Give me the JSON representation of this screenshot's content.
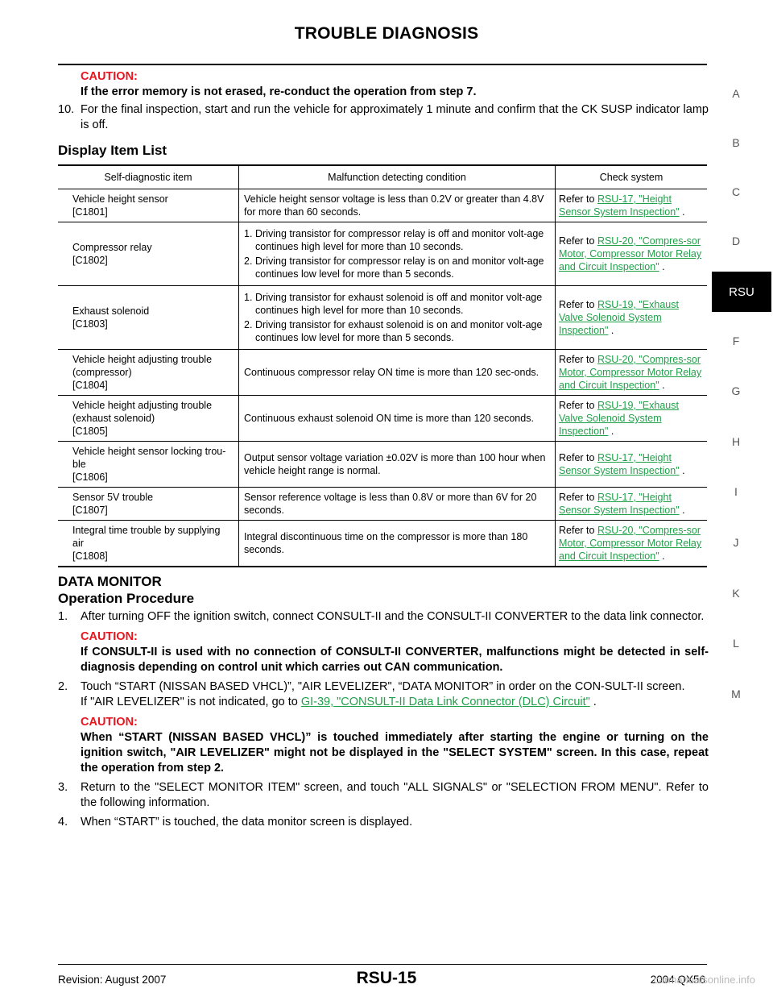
{
  "header": {
    "title": "TROUBLE DIAGNOSIS"
  },
  "side_index": {
    "letters": [
      "A",
      "B",
      "C",
      "D",
      "RSU",
      "F",
      "G",
      "H",
      "I",
      "J",
      "K",
      "L",
      "M"
    ],
    "active": "RSU"
  },
  "intro": {
    "caution_label": "CAUTION:",
    "caution_text": "If the error memory is not erased, re-conduct the operation from step 7.",
    "step10_num": "10.",
    "step10_text": "For the final inspection, start and run the vehicle for approximately 1 minute and confirm that the CK SUSP indicator lamp is off."
  },
  "display_item_list": {
    "heading": "Display Item List",
    "columns": [
      "Self-diagnostic item",
      "Malfunction detecting condition",
      "Check system"
    ],
    "rows": [
      {
        "item": [
          "Vehicle height sensor",
          "[C1801]"
        ],
        "condition": "Vehicle height sensor voltage is less than 0.2V or greater than 4.8V for more than 60 seconds.",
        "refer_prefix": "Refer to ",
        "refer_link": "RSU-17, \"Height Sensor System Inspection\"",
        "refer_suffix": " ."
      },
      {
        "item": [
          "Compressor relay",
          "[C1802]"
        ],
        "conditions": [
          {
            "num": "1.",
            "text": "Driving transistor for compressor relay is off and monitor volt-age continues high level for more than 10 seconds."
          },
          {
            "num": "2.",
            "text": "Driving transistor for compressor relay is on and monitor volt-age continues low level for more than 5 seconds."
          }
        ],
        "refer_prefix": "Refer to ",
        "refer_link": "RSU-20, \"Compres-sor Motor, Compressor Motor Relay and Circuit Inspection\"",
        "refer_suffix": " ."
      },
      {
        "item": [
          "Exhaust solenoid",
          "[C1803]"
        ],
        "conditions": [
          {
            "num": "1.",
            "text": "Driving transistor for exhaust solenoid is off and monitor volt-age continues high level for more than 10 seconds."
          },
          {
            "num": "2.",
            "text": "Driving transistor for exhaust solenoid is on and monitor volt-age continues low level for more than 5 seconds."
          }
        ],
        "refer_prefix": "Refer to ",
        "refer_link": "RSU-19, \"Exhaust Valve Solenoid System Inspection\"",
        "refer_suffix": " ."
      },
      {
        "item": [
          "Vehicle height adjusting trouble",
          "(compressor)",
          "[C1804]"
        ],
        "condition": "Continuous compressor relay ON time is more than 120 sec-onds.",
        "refer_prefix": "Refer to ",
        "refer_link": "RSU-20, \"Compres-sor Motor, Compressor Motor Relay and Circuit Inspection\"",
        "refer_suffix": " ."
      },
      {
        "item": [
          "Vehicle height adjusting trouble",
          "(exhaust solenoid)",
          "[C1805]"
        ],
        "condition": "Continuous exhaust solenoid ON time is more than 120 seconds.",
        "refer_prefix": "Refer to ",
        "refer_link": "RSU-19, \"Exhaust Valve Solenoid System Inspection\"",
        "refer_suffix": " ."
      },
      {
        "item": [
          "Vehicle height sensor locking trou-ble",
          "[C1806]"
        ],
        "condition": "Output sensor voltage variation ±0.02V is more than 100 hour when vehicle height range is normal.",
        "refer_prefix": "Refer to ",
        "refer_link": "RSU-17, \"Height Sensor System Inspection\"",
        "refer_suffix": " ."
      },
      {
        "item": [
          "Sensor 5V trouble",
          "[C1807]"
        ],
        "condition": "Sensor reference voltage is less than 0.8V or more than 6V for 20 seconds.",
        "refer_prefix": "Refer to ",
        "refer_link": "RSU-17, \"Height Sensor System Inspection\"",
        "refer_suffix": " ."
      },
      {
        "item": [
          "Integral time trouble by supplying air",
          "[C1808]"
        ],
        "condition": "Integral discontinuous time on the compressor is more than 180 seconds.",
        "refer_prefix": "Refer to ",
        "refer_link": "RSU-20, \"Compres-sor Motor, Compressor Motor Relay and Circuit Inspection\"",
        "refer_suffix": " ."
      }
    ]
  },
  "data_monitor": {
    "heading": "DATA MONITOR",
    "subheading": "Operation Procedure",
    "step1_num": "1.",
    "step1_text": "After turning OFF the ignition switch, connect CONSULT-II and the CONSULT-II CONVERTER to the data link connector.",
    "caution1_label": "CAUTION:",
    "caution1_text": "If CONSULT-II is used with no connection of CONSULT-II CONVERTER, malfunctions might be detected in self-diagnosis depending on control unit which carries out CAN communication.",
    "step2_num": "2.",
    "step2_text": "Touch “START (NISSAN BASED VHCL)”, \"AIR LEVELIZER\", “DATA MONITOR” in order on the CON-SULT-II screen.",
    "step2_note_prefix": "If \"AIR LEVELIZER\" is not indicated, go to ",
    "step2_note_link": "GI-39, \"CONSULT-II Data Link Connector (DLC) Circuit\"",
    "step2_note_suffix": " .",
    "caution2_label": "CAUTION:",
    "caution2_text": "When “START (NISSAN BASED VHCL)” is touched immediately after starting the engine or turning on the ignition switch, \"AIR LEVELIZER\" might not be displayed in the \"SELECT SYSTEM\" screen. In this case, repeat the operation from step 2.",
    "step3_num": "3.",
    "step3_text": "Return to the \"SELECT MONITOR ITEM\" screen, and touch \"ALL SIGNALS\" or \"SELECTION FROM MENU\". Refer to the following information.",
    "step4_num": "4.",
    "step4_text": "When “START” is touched, the data monitor screen is displayed."
  },
  "footer": {
    "revision": "Revision: August 2007",
    "page": "RSU-15",
    "model": "2004 QX56",
    "watermark": "carmanualsonline.info"
  }
}
